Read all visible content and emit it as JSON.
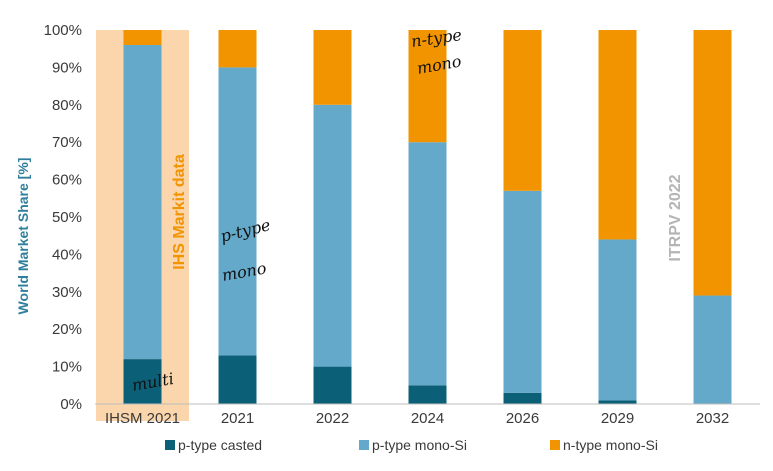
{
  "chart_data": {
    "type": "bar",
    "stacked": true,
    "ylabel": "World Market Share [%]",
    "ylim": [
      0,
      100
    ],
    "yticks": [
      "0%",
      "10%",
      "20%",
      "30%",
      "40%",
      "50%",
      "60%",
      "70%",
      "80%",
      "90%",
      "100%"
    ],
    "categories": [
      "IHSM 2021",
      "2021",
      "2022",
      "2024",
      "2026",
      "2029",
      "2032"
    ],
    "series": [
      {
        "name": "p-type casted",
        "color": "#0b6078",
        "values": [
          12,
          13,
          10,
          5,
          3,
          1,
          0
        ]
      },
      {
        "name": "p-type mono-Si",
        "color": "#64a9c9",
        "values": [
          84,
          77,
          70,
          65,
          54,
          43,
          29
        ]
      },
      {
        "name": "n-type mono-Si",
        "color": "#f29400",
        "values": [
          4,
          10,
          20,
          30,
          43,
          56,
          71
        ]
      }
    ],
    "legend_position": "bottom",
    "grid": false,
    "highlight_band": {
      "category": "IHSM 2021",
      "color": "#fbd5ab"
    },
    "annotations": {
      "ihs_label": {
        "text": "IHS Markit data",
        "color": "#f29400"
      },
      "itrpv_label": {
        "text": "ITRPV 2022",
        "color": "#b5b5b5"
      },
      "handwritten": [
        {
          "text": "n-type",
          "category": "2024"
        },
        {
          "text": "mono",
          "category": "2024"
        },
        {
          "text": "p-type",
          "category": "2021"
        },
        {
          "text": "mono",
          "category": "2021"
        },
        {
          "text": "multi",
          "category": "IHSM 2021"
        }
      ]
    }
  }
}
